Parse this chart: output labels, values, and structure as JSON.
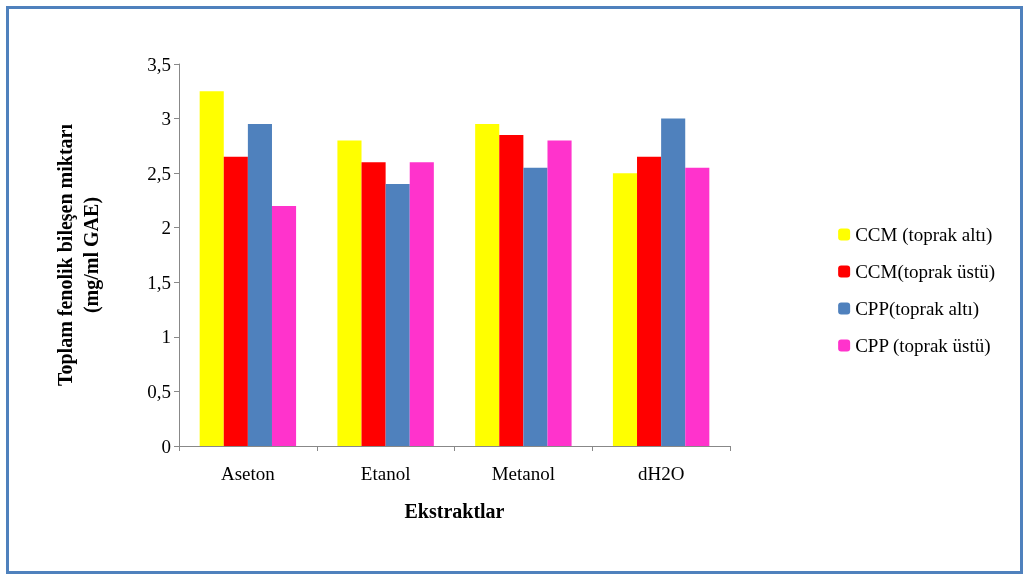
{
  "chart_data": {
    "type": "bar",
    "xlabel": "Ekstraktlar",
    "ylabel": "Toplam fenolik bileşen miktarı\n(mg/ml GAE)",
    "categories": [
      "Aseton",
      "Etanol",
      "Metanol",
      "dH2O"
    ],
    "series": [
      {
        "name": "CCM (toprak altı)",
        "color": "#ffff00",
        "values": [
          3.25,
          2.8,
          2.95,
          2.5
        ]
      },
      {
        "name": "CCM(toprak üstü)",
        "color": "#ff0000",
        "values": [
          2.65,
          2.6,
          2.85,
          2.65
        ]
      },
      {
        "name": "CPP(toprak altı)",
        "color": "#4f81bd",
        "values": [
          2.95,
          2.4,
          2.55,
          3.0
        ]
      },
      {
        "name": "CPP (toprak üstü)",
        "color": "#ff33cc",
        "values": [
          2.2,
          2.6,
          2.8,
          2.55
        ]
      }
    ],
    "ylim": [
      0,
      3.5
    ],
    "yticks": [
      {
        "value": 0,
        "label": "0"
      },
      {
        "value": 0.5,
        "label": "0,5"
      },
      {
        "value": 1,
        "label": "1"
      },
      {
        "value": 1.5,
        "label": "1,5"
      },
      {
        "value": 2,
        "label": "2"
      },
      {
        "value": 2.5,
        "label": "2,5"
      },
      {
        "value": 3,
        "label": "3"
      },
      {
        "value": 3.5,
        "label": "3,5"
      }
    ],
    "grid": false,
    "legend": "right"
  }
}
